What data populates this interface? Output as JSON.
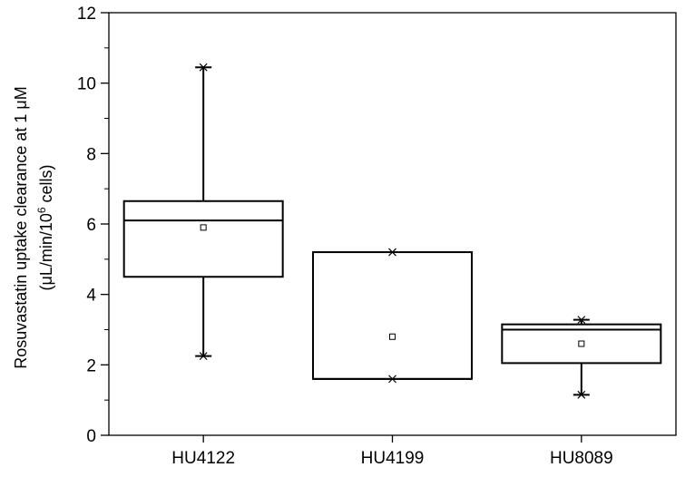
{
  "chart_data": {
    "type": "box",
    "title": "",
    "xlabel": "",
    "ylabel_line1": "Rosuvastatin uptake clearance at 1 μM",
    "ylabel_line2_pre": "(μL/min/10",
    "ylabel_line2_sup": "6",
    "ylabel_line2_post": " cells)",
    "ylim": [
      0,
      12
    ],
    "yticks": [
      0,
      2,
      4,
      6,
      8,
      10,
      12
    ],
    "grid": false,
    "categories": [
      "HU4122",
      "HU4199",
      "HU8089"
    ],
    "boxes": [
      {
        "category": "HU4122",
        "q1": 4.5,
        "median": 6.1,
        "q3": 6.65,
        "mean": 5.9,
        "whisker_low": 2.25,
        "whisker_high": 10.45,
        "min": 2.25,
        "max": 10.45
      },
      {
        "category": "HU4199",
        "q1": 1.6,
        "median": 1.6,
        "q3": 5.2,
        "mean": 2.8,
        "whisker_low": 1.6,
        "whisker_high": 5.2,
        "min": 1.6,
        "max": 5.2
      },
      {
        "category": "HU8089",
        "q1": 2.05,
        "median": 3.0,
        "q3": 3.15,
        "mean": 2.6,
        "whisker_low": 1.15,
        "whisker_high": 3.28,
        "min": 1.15,
        "max": 3.28
      }
    ]
  }
}
